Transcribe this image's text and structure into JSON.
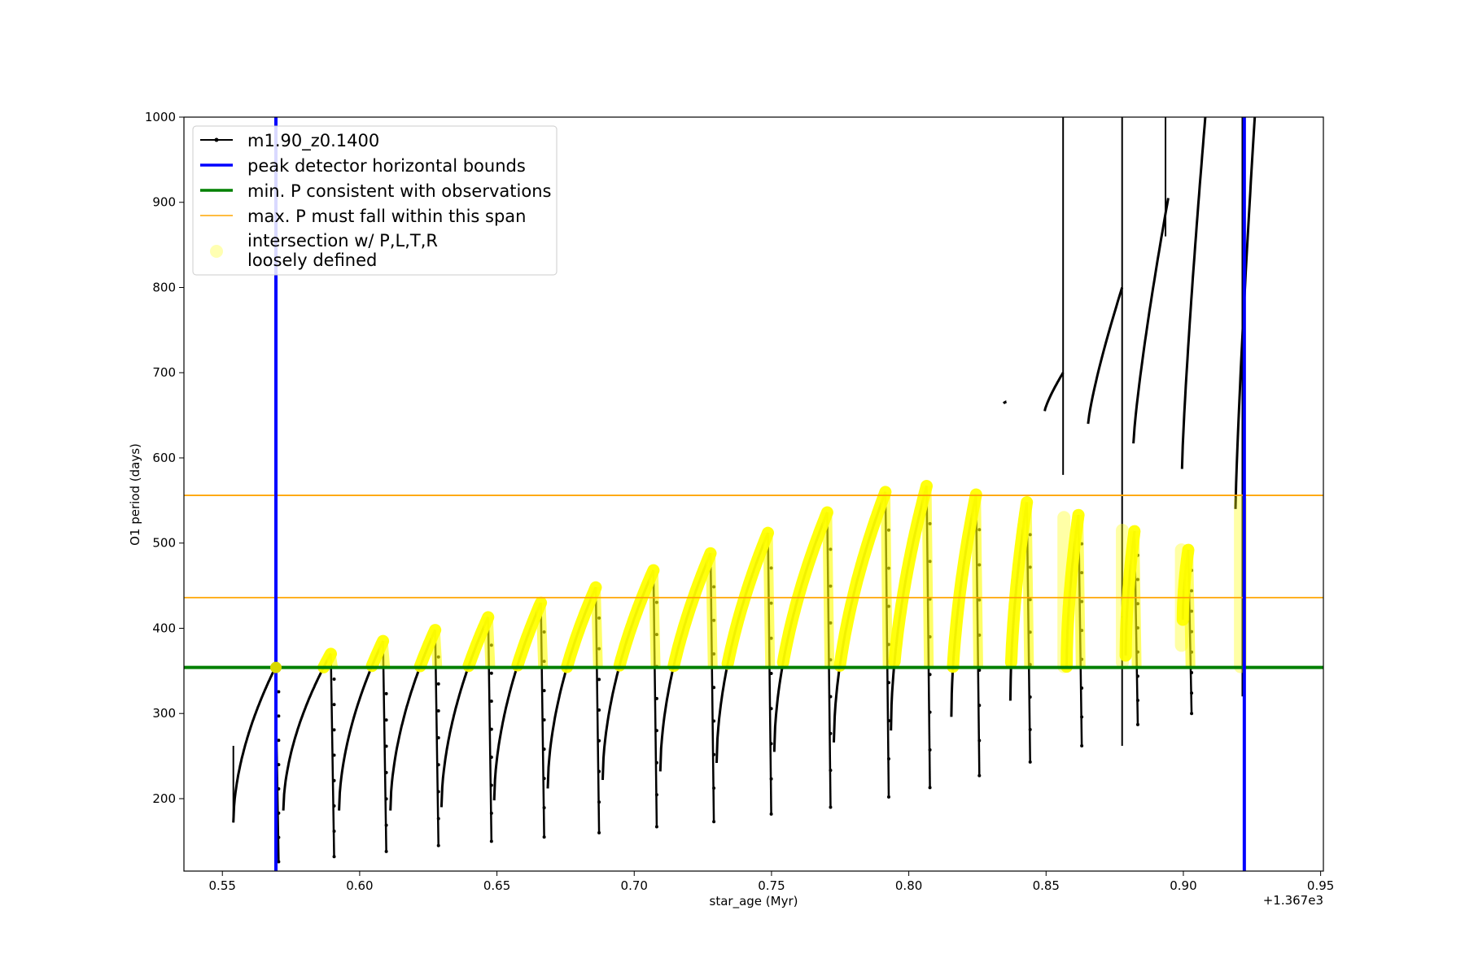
{
  "chart_data": {
    "type": "line",
    "title": "",
    "xlabel": "star_age (Myr)",
    "ylabel": "O1 period (days)",
    "x_offset_label": "+1.367e3",
    "xlim": [
      0.536,
      0.951
    ],
    "ylim": [
      115,
      1000
    ],
    "xticks": [
      0.55,
      0.6,
      0.65,
      0.7,
      0.75,
      0.8,
      0.85,
      0.9,
      0.95
    ],
    "xtick_labels": [
      "0.55",
      "0.60",
      "0.65",
      "0.70",
      "0.75",
      "0.80",
      "0.85",
      "0.90",
      "0.95"
    ],
    "yticks": [
      200,
      300,
      400,
      500,
      600,
      700,
      800,
      900,
      1000
    ],
    "ytick_labels": [
      "200",
      "300",
      "400",
      "500",
      "600",
      "700",
      "800",
      "900",
      "1000"
    ],
    "grid": false,
    "legend_position": "top-left",
    "legend": [
      {
        "label": "m1.90_z0.1400",
        "kind": "line-marker",
        "color": "#000000"
      },
      {
        "label": "peak detector horizontal bounds",
        "kind": "line",
        "color": "#0000ff"
      },
      {
        "label": "min. P consistent with observations",
        "kind": "line",
        "color": "#008000"
      },
      {
        "label": "max. P must fall within this span",
        "kind": "line",
        "color": "#ffa500"
      },
      {
        "label": "intersection w/ P,L,T,R",
        "label2": "loosely defined",
        "kind": "circle",
        "color": "#ffff00"
      }
    ],
    "vertical_lines": [
      {
        "x": 0.5695,
        "color": "#0000ff"
      },
      {
        "x": 0.9222,
        "color": "#0000ff"
      }
    ],
    "horizontal_lines": [
      {
        "y": 354,
        "color": "#008000"
      },
      {
        "y": 436,
        "color": "#ffa500"
      },
      {
        "y": 556,
        "color": "#ffa500"
      }
    ],
    "pulses": [
      {
        "x0": 0.554,
        "y0": 172,
        "x1": 0.5693,
        "y1": 354,
        "drop": 126
      },
      {
        "x0": 0.5722,
        "y0": 186,
        "x1": 0.5895,
        "y1": 370,
        "drop": 132
      },
      {
        "x0": 0.5925,
        "y0": 186,
        "x1": 0.6085,
        "y1": 385,
        "drop": 138
      },
      {
        "x0": 0.6112,
        "y0": 186,
        "x1": 0.6275,
        "y1": 398,
        "drop": 145
      },
      {
        "x0": 0.6298,
        "y0": 190,
        "x1": 0.6468,
        "y1": 413,
        "drop": 150
      },
      {
        "x0": 0.649,
        "y0": 198,
        "x1": 0.666,
        "y1": 430,
        "drop": 155
      },
      {
        "x0": 0.6685,
        "y0": 212,
        "x1": 0.686,
        "y1": 448,
        "drop": 160
      },
      {
        "x0": 0.6885,
        "y0": 222,
        "x1": 0.707,
        "y1": 468,
        "drop": 167
      },
      {
        "x0": 0.7095,
        "y0": 232,
        "x1": 0.7278,
        "y1": 488,
        "drop": 173
      },
      {
        "x0": 0.73,
        "y0": 242,
        "x1": 0.7487,
        "y1": 512,
        "drop": 182
      },
      {
        "x0": 0.751,
        "y0": 255,
        "x1": 0.7703,
        "y1": 536,
        "drop": 190
      },
      {
        "x0": 0.7727,
        "y0": 266,
        "x1": 0.7915,
        "y1": 560,
        "drop": 202
      },
      {
        "x0": 0.7935,
        "y0": 280,
        "x1": 0.8065,
        "y1": 567,
        "drop": 213
      },
      {
        "x0": 0.8155,
        "y0": 296,
        "x1": 0.8245,
        "y1": 557,
        "drop": 227
      },
      {
        "x0": 0.837,
        "y0": 315,
        "x1": 0.843,
        "y1": 548,
        "drop": 243
      },
      {
        "x0": 0.8575,
        "y0": 355,
        "x1": 0.8618,
        "y1": 533,
        "drop": 262
      },
      {
        "x0": 0.879,
        "y0": 368,
        "x1": 0.8822,
        "y1": 514,
        "drop": 287
      },
      {
        "x0": 0.8998,
        "y0": 410,
        "x1": 0.9018,
        "y1": 492,
        "drop": 300
      }
    ],
    "upper_branch_segments": [
      {
        "x0": 0.8345,
        "y0": 664,
        "x1": 0.8355,
        "y1": 666
      },
      {
        "x0": 0.8495,
        "y0": 655,
        "x1": 0.8562,
        "y1": 700
      },
      {
        "x0": 0.8653,
        "y0": 640,
        "x1": 0.8777,
        "y1": 800
      },
      {
        "x0": 0.8818,
        "y0": 617,
        "x1": 0.8945,
        "y1": 905
      },
      {
        "x0": 0.8995,
        "y0": 587,
        "x1": 0.908,
        "y1": 1000
      },
      {
        "x0": 0.919,
        "y0": 540,
        "x1": 0.926,
        "y1": 1000
      }
    ],
    "spikes": [
      {
        "x": 0.8562,
        "y0": 580,
        "y1": 1000
      },
      {
        "x": 0.8777,
        "y0": 262,
        "y1": 1000
      },
      {
        "x": 0.8935,
        "y0": 860,
        "y1": 1000
      },
      {
        "x": 0.9215,
        "y0": 320,
        "y1": 1000
      }
    ],
    "yellow_clusters": [
      {
        "x": 0.8565,
        "y0": 355,
        "y1": 530
      },
      {
        "x": 0.8778,
        "y0": 360,
        "y1": 515
      },
      {
        "x": 0.8993,
        "y0": 380,
        "y1": 492
      },
      {
        "x": 0.9208,
        "y0": 355,
        "y1": 550
      }
    ]
  }
}
